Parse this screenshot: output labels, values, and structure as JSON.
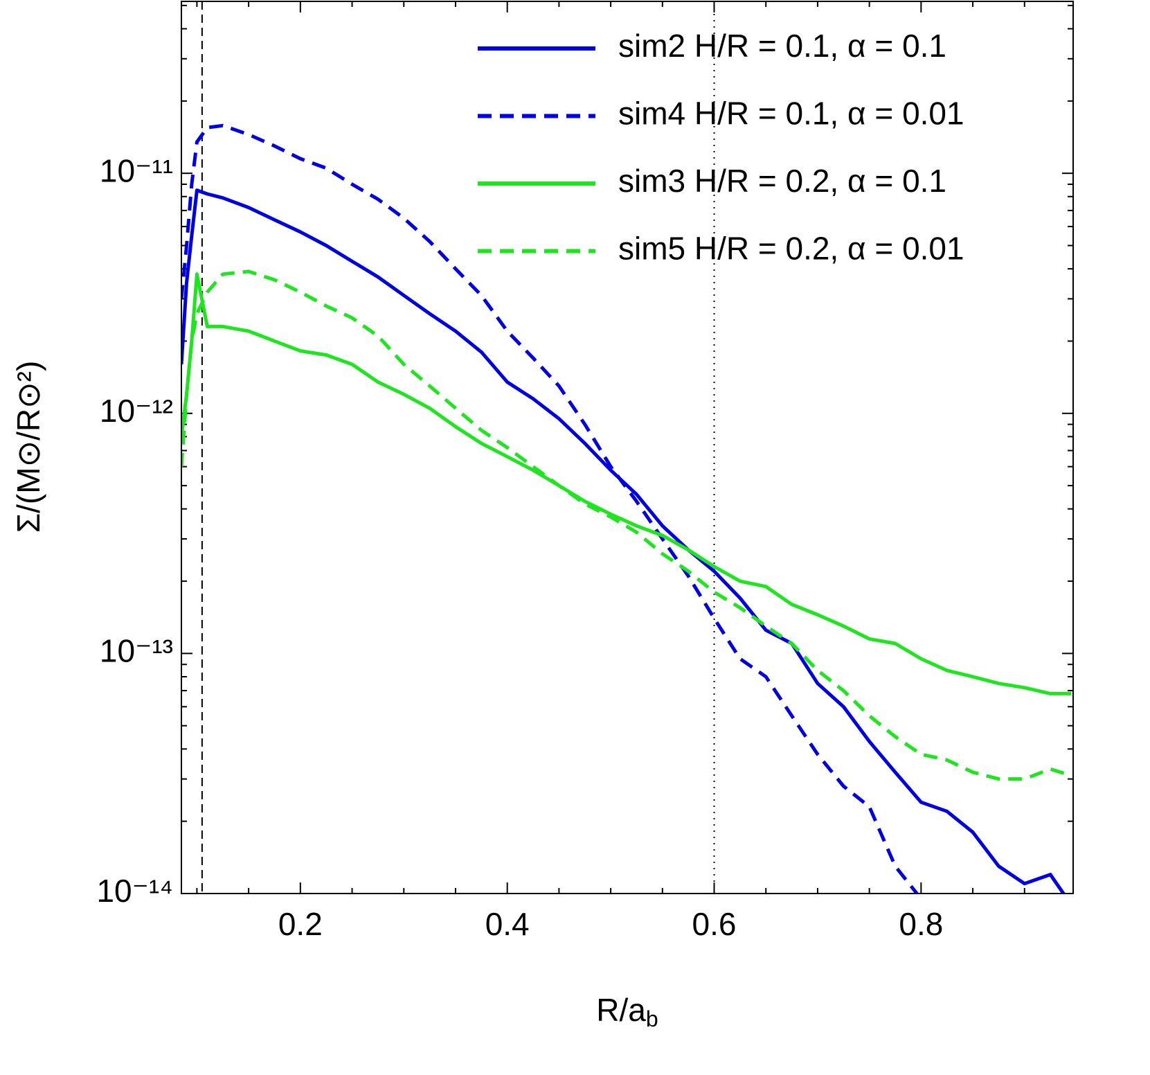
{
  "chart_data": {
    "type": "line",
    "xlabel": [
      "R/a",
      "b"
    ],
    "ylabel": "Σ/(M⊙/R⊙²)",
    "log_y": true,
    "xlim": [
      0.085,
      0.947
    ],
    "ylim": [
      1e-14,
      5.2e-11
    ],
    "xticks": [
      0.2,
      0.4,
      0.6,
      0.8
    ],
    "xminorticks": [
      0.1,
      0.15,
      0.25,
      0.3,
      0.35,
      0.45,
      0.5,
      0.55,
      0.65,
      0.7,
      0.75,
      0.85,
      0.9
    ],
    "yticks": [
      {
        "value": 1e-14,
        "label": "10⁻¹⁴"
      },
      {
        "value": 1e-13,
        "label": "10⁻¹³"
      },
      {
        "value": 1e-12,
        "label": "10⁻¹²"
      },
      {
        "value": 1e-11,
        "label": "10⁻¹¹"
      }
    ],
    "yminorticks": [
      2e-14,
      3e-14,
      4e-14,
      5e-14,
      6e-14,
      7e-14,
      8e-14,
      9e-14,
      2e-13,
      3e-13,
      4e-13,
      5e-13,
      6e-13,
      7e-13,
      8e-13,
      9e-13,
      2e-12,
      3e-12,
      4e-12,
      5e-12,
      6e-12,
      7e-12,
      8e-12,
      9e-12,
      2e-11,
      3e-11,
      4e-11,
      5e-11
    ],
    "vlines": [
      {
        "x": 0.105,
        "style": "dashed"
      },
      {
        "x": 0.6,
        "style": "dotted"
      }
    ],
    "legend": "upper right",
    "x": [
      0.085,
      0.09,
      0.095,
      0.1,
      0.11,
      0.125,
      0.15,
      0.175,
      0.2,
      0.225,
      0.25,
      0.275,
      0.3,
      0.325,
      0.35,
      0.375,
      0.4,
      0.425,
      0.45,
      0.475,
      0.5,
      0.525,
      0.55,
      0.575,
      0.6,
      0.625,
      0.65,
      0.675,
      0.7,
      0.725,
      0.75,
      0.775,
      0.8,
      0.825,
      0.85,
      0.875,
      0.9,
      0.925,
      0.945
    ],
    "series": [
      {
        "name": "sim2 H/R = 0.1, α = 0.1",
        "color": "#0000e6",
        "style": "solid",
        "values": [
          1.6e-12,
          3.5e-12,
          5.5e-12,
          8.5e-12,
          8.2e-12,
          7.9e-12,
          7.2e-12,
          6.4e-12,
          5.7e-12,
          5e-12,
          4.3e-12,
          3.7e-12,
          3.1e-12,
          2.6e-12,
          2.2e-12,
          1.8e-12,
          1.35e-12,
          1.15e-12,
          9.5e-13,
          7.5e-13,
          5.8e-13,
          4.6e-13,
          3.4e-13,
          2.7e-13,
          2.2e-13,
          1.7e-13,
          1.25e-13,
          1.1e-13,
          7.5e-14,
          6e-14,
          4.3e-14,
          3.2e-14,
          2.4e-14,
          2.2e-14,
          1.8e-14,
          1.3e-14,
          1.1e-14,
          1.2e-14,
          9e-15
        ]
      },
      {
        "name": "sim4 H/R = 0.1, α = 0.01",
        "color": "#0000e6",
        "style": "dashed",
        "values": [
          3e-12,
          5e-12,
          9e-12,
          1.35e-11,
          1.55e-11,
          1.58e-11,
          1.45e-11,
          1.3e-11,
          1.15e-11,
          1.05e-11,
          9e-12,
          7.8e-12,
          6.5e-12,
          5.2e-12,
          4e-12,
          3.1e-12,
          2.2e-12,
          1.7e-12,
          1.3e-12,
          9e-13,
          6e-13,
          4.3e-13,
          3e-13,
          2.1e-13,
          1.4e-13,
          9.5e-14,
          8e-14,
          5.5e-14,
          3.8e-14,
          2.8e-14,
          2.3e-14,
          1.3e-14,
          9.5e-15,
          null,
          null,
          null,
          null,
          null,
          null
        ]
      },
      {
        "name": "sim3 H/R = 0.2, α = 0.1",
        "color": "#1ee61e",
        "style": "solid",
        "values": [
          8e-13,
          1.2e-12,
          2e-12,
          3.8e-12,
          2.3e-12,
          2.3e-12,
          2.2e-12,
          2e-12,
          1.82e-12,
          1.75e-12,
          1.6e-12,
          1.35e-12,
          1.2e-12,
          1.05e-12,
          8.8e-13,
          7.5e-13,
          6.6e-13,
          5.8e-13,
          5e-13,
          4.3e-13,
          3.8e-13,
          3.4e-13,
          3.1e-13,
          2.7e-13,
          2.3e-13,
          2e-13,
          1.9e-13,
          1.6e-13,
          1.45e-13,
          1.3e-13,
          1.15e-13,
          1.1e-13,
          9.5e-14,
          8.5e-14,
          8e-14,
          7.5e-14,
          7.2e-14,
          6.8e-14,
          6.8e-14
        ]
      },
      {
        "name": "sim5 H/R = 0.2, α = 0.01",
        "color": "#1ee61e",
        "style": "dashed",
        "values": [
          6e-13,
          1.2e-12,
          2e-12,
          2.6e-12,
          3.2e-12,
          3.8e-12,
          3.9e-12,
          3.6e-12,
          3.2e-12,
          2.8e-12,
          2.5e-12,
          2.1e-12,
          1.6e-12,
          1.3e-12,
          1.05e-12,
          8.5e-13,
          7.2e-13,
          6e-13,
          5e-13,
          4.2e-13,
          3.7e-13,
          3.2e-13,
          2.6e-13,
          2.2e-13,
          1.8e-13,
          1.55e-13,
          1.3e-13,
          1.1e-13,
          8.5e-14,
          7e-14,
          5.5e-14,
          4.5e-14,
          3.8e-14,
          3.6e-14,
          3.2e-14,
          3e-14,
          3e-14,
          3.3e-14,
          3.1e-14
        ]
      }
    ]
  }
}
